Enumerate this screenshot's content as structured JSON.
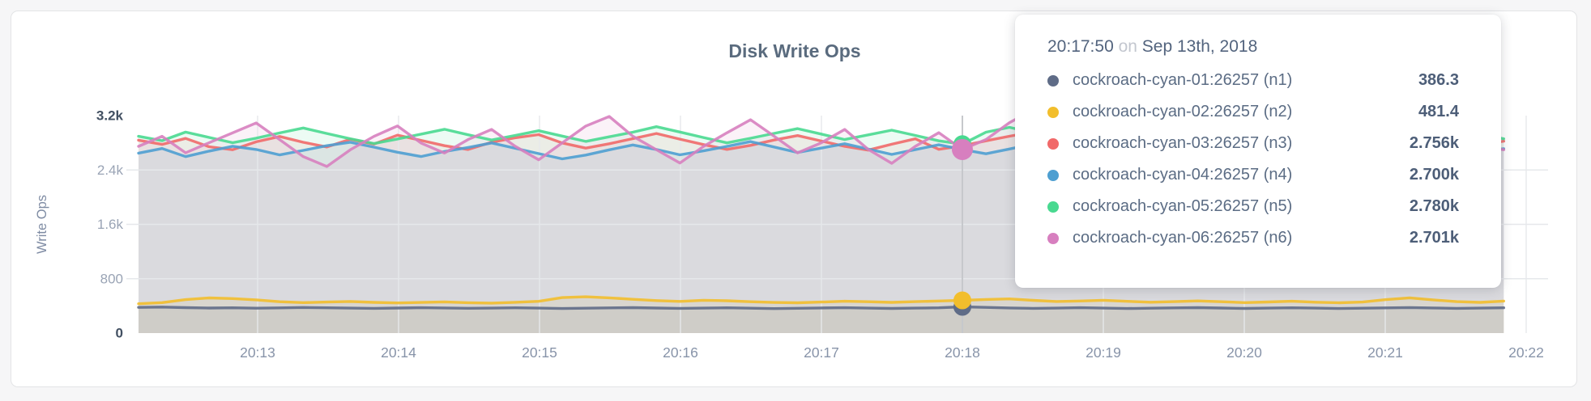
{
  "chart": {
    "title": "Disk Write Ops",
    "y_axis": {
      "label": "Write Ops",
      "ticks": [
        {
          "label": "0",
          "value": 0,
          "strong": true
        },
        {
          "label": "800",
          "value": 800,
          "strong": false
        },
        {
          "label": "1.6k",
          "value": 1600,
          "strong": false
        },
        {
          "label": "2.4k",
          "value": 2400,
          "strong": false
        },
        {
          "label": "3.2k",
          "value": 3200,
          "strong": true
        }
      ]
    },
    "x_axis": {
      "ticks": [
        "20:13",
        "20:14",
        "20:15",
        "20:16",
        "20:17",
        "20:18",
        "20:19",
        "20:20",
        "20:21",
        "20:22"
      ]
    }
  },
  "tooltip": {
    "time": "20:17:50",
    "separator": "on",
    "date": "Sep 13th, 2018",
    "rows": [
      {
        "name": "cockroach-cyan-01:26257 (n1)",
        "value": "386.3",
        "color": "#5F6C87"
      },
      {
        "name": "cockroach-cyan-02:26257 (n2)",
        "value": "481.4",
        "color": "#F2BE2C"
      },
      {
        "name": "cockroach-cyan-03:26257 (n3)",
        "value": "2.756k",
        "color": "#F16969"
      },
      {
        "name": "cockroach-cyan-04:26257 (n4)",
        "value": "2.700k",
        "color": "#4E9FD1"
      },
      {
        "name": "cockroach-cyan-05:26257 (n5)",
        "value": "2.780k",
        "color": "#49D990"
      },
      {
        "name": "cockroach-cyan-06:26257 (n6)",
        "value": "2.701k",
        "color": "#D77FBF"
      }
    ]
  },
  "chart_data": {
    "type": "line",
    "title": "Disk Write Ops",
    "xlabel": "",
    "ylabel": "Write Ops",
    "ylim": [
      0,
      3200
    ],
    "y_tick_values": [
      0,
      800,
      1600,
      2400,
      3200
    ],
    "x_tick_labels": [
      "20:13",
      "20:14",
      "20:15",
      "20:16",
      "20:17",
      "20:18",
      "20:19",
      "20:20",
      "20:21",
      "20:22"
    ],
    "x_start_time": "20:12:10",
    "x_step_seconds": 10,
    "grid": true,
    "legend_position": "tooltip",
    "hover_index": 35,
    "hover_time": "20:17:50",
    "hover_date": "Sep 13th, 2018",
    "series": [
      {
        "name": "cockroach-cyan-01:26257 (n1)",
        "color": "#5F6C87",
        "values": [
          378,
          383,
          375,
          369,
          372,
          366,
          371,
          377,
          372,
          368,
          364,
          369,
          374,
          370,
          365,
          368,
          372,
          367,
          362,
          366,
          371,
          375,
          369,
          364,
          368,
          372,
          366,
          361,
          365,
          370,
          374,
          368,
          363,
          367,
          372,
          386.3,
          378,
          370,
          364,
          368,
          373,
          367,
          362,
          366,
          371,
          375,
          369,
          363,
          367,
          372,
          368,
          362,
          366,
          371,
          376,
          370,
          364,
          368,
          372
        ]
      },
      {
        "name": "cockroach-cyan-02:26257 (n2)",
        "color": "#F2BE2C",
        "values": [
          432,
          448,
          492,
          517,
          508,
          489,
          462,
          449,
          457,
          465,
          452,
          444,
          451,
          459,
          447,
          441,
          453,
          468,
          522,
          534,
          519,
          497,
          478,
          466,
          483,
          476,
          462,
          451,
          446,
          457,
          469,
          461,
          452,
          463,
          472,
          481.4,
          495,
          503,
          482,
          465,
          472,
          483,
          468,
          455,
          463,
          474,
          461,
          449,
          458,
          469,
          455,
          446,
          457,
          493,
          519,
          489,
          463,
          452,
          471
        ]
      },
      {
        "name": "cockroach-cyan-03:26257 (n3)",
        "color": "#F16969",
        "values": [
          2838,
          2776,
          2864,
          2742,
          2698,
          2815,
          2893,
          2807,
          2738,
          2852,
          2781,
          2912,
          2836,
          2758,
          2701,
          2809,
          2874,
          2921,
          2798,
          2722,
          2786,
          2861,
          2937,
          2854,
          2774,
          2703,
          2762,
          2841,
          2906,
          2827,
          2748,
          2692,
          2779,
          2858,
          2704,
          2756,
          2829,
          2897,
          2958,
          2846,
          2761,
          2688,
          2767,
          2849,
          2913,
          2806,
          2729,
          2797,
          2872,
          2757,
          2699,
          2788,
          2856,
          2924,
          2817,
          2741,
          2808,
          2766,
          2824
        ]
      },
      {
        "name": "cockroach-cyan-04:26257 (n4)",
        "color": "#4E9FD1",
        "values": [
          2648,
          2716,
          2597,
          2678,
          2749,
          2701,
          2622,
          2688,
          2757,
          2809,
          2736,
          2661,
          2598,
          2672,
          2731,
          2798,
          2719,
          2641,
          2563,
          2619,
          2697,
          2768,
          2702,
          2623,
          2681,
          2747,
          2818,
          2739,
          2658,
          2722,
          2786,
          2708,
          2629,
          2699,
          2771,
          2700,
          2638,
          2709,
          2781,
          2846,
          2767,
          2687,
          2609,
          2679,
          2748,
          2699,
          2621,
          2692,
          2761,
          2829,
          2749,
          2669,
          2728,
          2797,
          2718,
          2639,
          2701,
          2673,
          2712
        ]
      },
      {
        "name": "cockroach-cyan-05:26257 (n5)",
        "color": "#49D990",
        "values": [
          2896,
          2831,
          2957,
          2879,
          2801,
          2868,
          2946,
          3018,
          2937,
          2859,
          2788,
          2856,
          2928,
          2999,
          2918,
          2841,
          2909,
          2977,
          2899,
          2821,
          2888,
          2956,
          3037,
          2959,
          2878,
          2799,
          2867,
          2938,
          3008,
          2929,
          2848,
          2917,
          2986,
          2908,
          2829,
          2780,
          2956,
          3028,
          2949,
          2868,
          2936,
          3007,
          2927,
          2849,
          2916,
          2988,
          3056,
          2978,
          2898,
          2819,
          2887,
          2957,
          2879,
          2799,
          2866,
          2937,
          3009,
          2928,
          2858
        ]
      },
      {
        "name": "cockroach-cyan-06:26257 (n6)",
        "color": "#D77FBF",
        "values": [
          2748,
          2896,
          2653,
          2801,
          2947,
          3092,
          2846,
          2597,
          2452,
          2698,
          2894,
          3048,
          2797,
          2649,
          2848,
          2996,
          2749,
          2551,
          2799,
          3046,
          3187,
          2897,
          2698,
          2503,
          2747,
          2948,
          3139,
          2898,
          2652,
          2799,
          2997,
          2703,
          2498,
          2748,
          2949,
          2701,
          2848,
          3097,
          3284,
          2998,
          2749,
          2552,
          2797,
          2999,
          2698,
          2501,
          2748,
          2946,
          3142,
          2849,
          2601,
          2798,
          2997,
          2748,
          2549,
          2698,
          2852,
          2749,
          2698
        ]
      }
    ]
  }
}
